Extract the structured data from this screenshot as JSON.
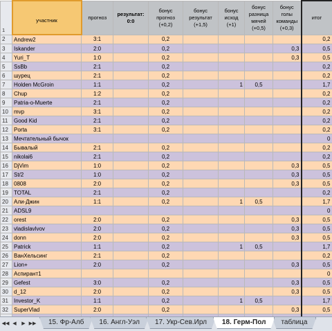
{
  "headers": {
    "row_num": "1",
    "participant": "участник",
    "forecast": "прогноз",
    "result": "результат: 0:0",
    "bonus_forecast": "бонус прогноз (+0,2)",
    "bonus_result": "бонус результат (+1,5)",
    "bonus_outcome": "бонус исход (+1)",
    "bonus_diff": "бонус разница мячей (+0,5)",
    "bonus_goals": "бонус голы команды (+0,3)",
    "total": "итог"
  },
  "rows": [
    {
      "n": "2",
      "name": "Andrew2",
      "forecast": "3:1",
      "bp": "0,2",
      "br": "",
      "bo": "",
      "bd": "",
      "bg": "",
      "total": "0,2"
    },
    {
      "n": "3",
      "name": "Iskander",
      "forecast": "2:0",
      "bp": "0,2",
      "br": "",
      "bo": "",
      "bd": "",
      "bg": "0,3",
      "total": "0,5"
    },
    {
      "n": "4",
      "name": "Yuri_T",
      "forecast": "1:0",
      "bp": "0,2",
      "br": "",
      "bo": "",
      "bd": "",
      "bg": "0,3",
      "total": "0,5"
    },
    {
      "n": "5",
      "name": "SsBb",
      "forecast": "2:1",
      "bp": "0,2",
      "br": "",
      "bo": "",
      "bd": "",
      "bg": "",
      "total": "0,2"
    },
    {
      "n": "6",
      "name": "шурец",
      "forecast": "2:1",
      "bp": "0,2",
      "br": "",
      "bo": "",
      "bd": "",
      "bg": "",
      "total": "0,2"
    },
    {
      "n": "7",
      "name": "Holden McGroin",
      "forecast": "1:1",
      "bp": "0,2",
      "br": "",
      "bo": "1",
      "bd": "0,5",
      "bg": "",
      "total": "1,7"
    },
    {
      "n": "8",
      "name": "Chup",
      "forecast": "1:2",
      "bp": "0,2",
      "br": "",
      "bo": "",
      "bd": "",
      "bg": "",
      "total": "0,2"
    },
    {
      "n": "9",
      "name": "Patria-o-Muerte",
      "forecast": "2:1",
      "bp": "0,2",
      "br": "",
      "bo": "",
      "bd": "",
      "bg": "",
      "total": "0,2"
    },
    {
      "n": "10",
      "name": "mvp",
      "forecast": "3:1",
      "bp": "0,2",
      "br": "",
      "bo": "",
      "bd": "",
      "bg": "",
      "total": "0,2"
    },
    {
      "n": "11",
      "name": "Good Kid",
      "forecast": "2:1",
      "bp": "0,2",
      "br": "",
      "bo": "",
      "bd": "",
      "bg": "",
      "total": "0,2"
    },
    {
      "n": "12",
      "name": "Porta",
      "forecast": "3:1",
      "bp": "0,2",
      "br": "",
      "bo": "",
      "bd": "",
      "bg": "",
      "total": "0,2"
    },
    {
      "n": "13",
      "name": "Мечтательный бычок",
      "forecast": "",
      "bp": "",
      "br": "",
      "bo": "",
      "bd": "",
      "bg": "",
      "total": "0"
    },
    {
      "n": "14",
      "name": "Бывалый",
      "forecast": "2:1",
      "bp": "0,2",
      "br": "",
      "bo": "",
      "bd": "",
      "bg": "",
      "total": "0,2"
    },
    {
      "n": "15",
      "name": "nikolai6",
      "forecast": "2:1",
      "bp": "0,2",
      "br": "",
      "bo": "",
      "bd": "",
      "bg": "",
      "total": "0,2"
    },
    {
      "n": "16",
      "name": "DjVim",
      "forecast": "1:0",
      "bp": "0,2",
      "br": "",
      "bo": "",
      "bd": "",
      "bg": "0,3",
      "total": "0,5"
    },
    {
      "n": "17",
      "name": "St/2",
      "forecast": "1:0",
      "bp": "0,2",
      "br": "",
      "bo": "",
      "bd": "",
      "bg": "0,3",
      "total": "0,5"
    },
    {
      "n": "18",
      "name": "0808",
      "forecast": "2:0",
      "bp": "0,2",
      "br": "",
      "bo": "",
      "bd": "",
      "bg": "0,3",
      "total": "0,5"
    },
    {
      "n": "19",
      "name": "TOTAL",
      "forecast": "2:1",
      "bp": "0,2",
      "br": "",
      "bo": "",
      "bd": "",
      "bg": "",
      "total": "0,2"
    },
    {
      "n": "20",
      "name": "Али-Джин",
      "forecast": "1:1",
      "bp": "0,2",
      "br": "",
      "bo": "1",
      "bd": "0,5",
      "bg": "",
      "total": "1,7"
    },
    {
      "n": "21",
      "name": "ADSL9",
      "forecast": "",
      "bp": "",
      "br": "",
      "bo": "",
      "bd": "",
      "bg": "",
      "total": "0"
    },
    {
      "n": "22",
      "name": "orest",
      "forecast": "2:0",
      "bp": "0,2",
      "br": "",
      "bo": "",
      "bd": "",
      "bg": "0,3",
      "total": "0,5"
    },
    {
      "n": "23",
      "name": "vladislavlvov",
      "forecast": "2:0",
      "bp": "0,2",
      "br": "",
      "bo": "",
      "bd": "",
      "bg": "0,3",
      "total": "0,5"
    },
    {
      "n": "24",
      "name": "donn",
      "forecast": "2:0",
      "bp": "0,2",
      "br": "",
      "bo": "",
      "bd": "",
      "bg": "0,3",
      "total": "0,5"
    },
    {
      "n": "25",
      "name": "Patrick",
      "forecast": "1:1",
      "bp": "0,2",
      "br": "",
      "bo": "1",
      "bd": "0,5",
      "bg": "",
      "total": "1,7"
    },
    {
      "n": "26",
      "name": "ВанХельсинг",
      "forecast": "2:1",
      "bp": "0,2",
      "br": "",
      "bo": "",
      "bd": "",
      "bg": "",
      "total": "0,2"
    },
    {
      "n": "27",
      "name": "Lion+",
      "forecast": "2:0",
      "bp": "0,2",
      "br": "",
      "bo": "",
      "bd": "",
      "bg": "0,3",
      "total": "0,5"
    },
    {
      "n": "28",
      "name": "Аспирант1",
      "forecast": "",
      "bp": "",
      "br": "",
      "bo": "",
      "bd": "",
      "bg": "",
      "total": "0"
    },
    {
      "n": "29",
      "name": "Gefest",
      "forecast": "3:0",
      "bp": "0,2",
      "br": "",
      "bo": "",
      "bd": "",
      "bg": "0,3",
      "total": "0,5"
    },
    {
      "n": "30",
      "name": "d_12",
      "forecast": "2:0",
      "bp": "0,2",
      "br": "",
      "bo": "",
      "bd": "",
      "bg": "0,3",
      "total": "0,5"
    },
    {
      "n": "31",
      "name": "Investor_K",
      "forecast": "1:1",
      "bp": "0,2",
      "br": "",
      "bo": "1",
      "bd": "0,5",
      "bg": "",
      "total": "1,7"
    },
    {
      "n": "32",
      "name": "SuperVlad",
      "forecast": "2:0",
      "bp": "0,2",
      "br": "",
      "bo": "",
      "bd": "",
      "bg": "0,3",
      "total": "0,5"
    },
    {
      "n": "33",
      "name": "",
      "forecast": "",
      "bp": "",
      "br": "",
      "bo": "",
      "bd": "",
      "bg": "",
      "total": ""
    }
  ],
  "tabs": [
    {
      "label": "15. Фр-Алб",
      "active": false
    },
    {
      "label": "16. Англ-Уэл",
      "active": false
    },
    {
      "label": "17. Укр-Сев.Ирл",
      "active": false
    },
    {
      "label": "18. Герм-Пол",
      "active": true
    },
    {
      "label": "таблица",
      "active": false
    }
  ],
  "nav": {
    "first": "◀◀",
    "prev": "◀",
    "next": "▶",
    "last": "▶▶"
  },
  "colors": {
    "row_odd": "#fed8b3",
    "row_even": "#ccc2dc",
    "header": "#c0c3c6",
    "selected": "#f6c873"
  }
}
